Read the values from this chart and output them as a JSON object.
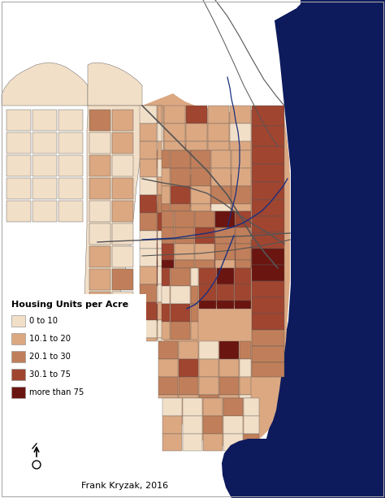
{
  "legend_title": "Housing Units per Acre",
  "legend_items": [
    {
      "label": "0 to 10",
      "color": "#f2dfc8"
    },
    {
      "label": "10.1 to 20",
      "color": "#dba882"
    },
    {
      "label": "20.1 to 30",
      "color": "#c07f5a"
    },
    {
      "label": "30.1 to 75",
      "color": "#a04530"
    },
    {
      "label": "more than 75",
      "color": "#6b1510"
    }
  ],
  "water_color": "#0d1a5c",
  "grid_color": "#555555",
  "road_color": "#555555",
  "river_color": "#1a2f80",
  "credit": "Frank Kryzak, 2016",
  "background": "#ffffff",
  "border_color": "#aaaaaa",
  "white_area": "#ffffff"
}
